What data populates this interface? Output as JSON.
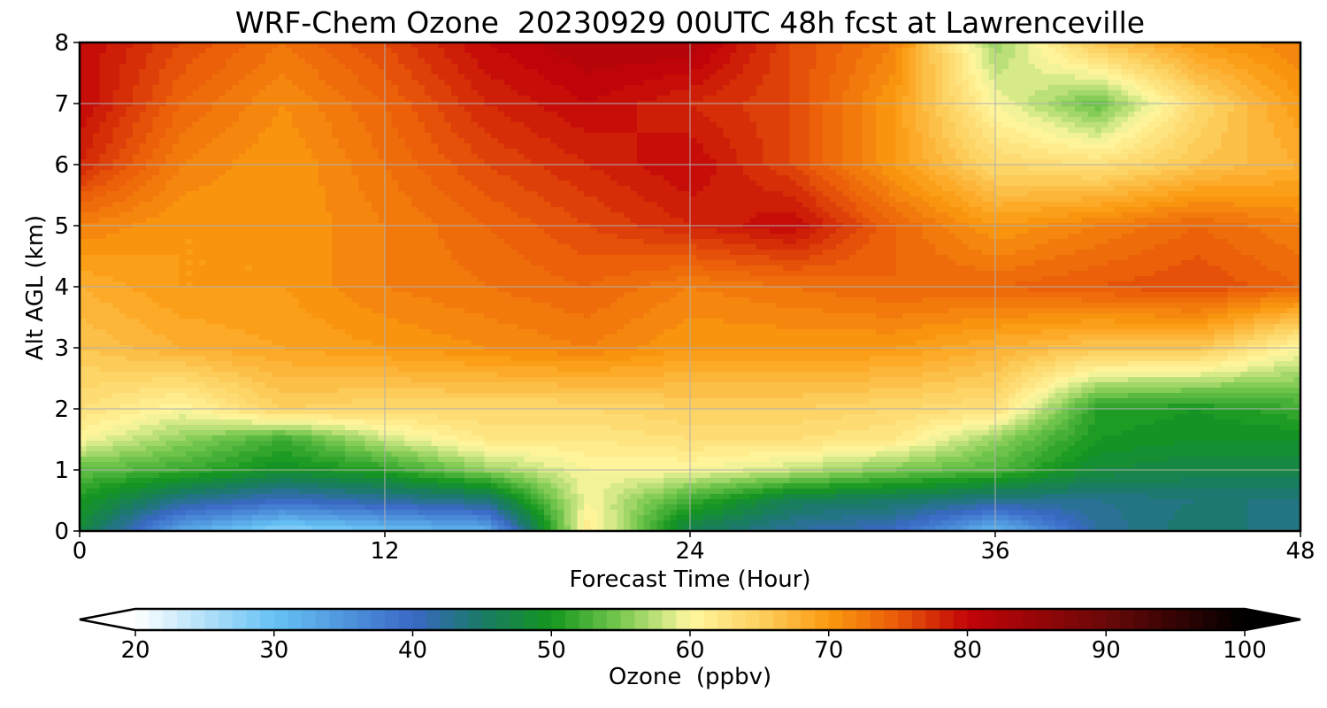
{
  "chart_data": {
    "type": "heatmap",
    "title": "WRF-Chem Ozone  20230929 00UTC 48h fcst at Lawrenceville",
    "xlabel": "Forecast Time (Hour)",
    "ylabel": "Alt AGL (km)",
    "xlim": [
      0,
      48
    ],
    "ylim": [
      0,
      8
    ],
    "xticks": [
      "0",
      "12",
      "24",
      "36",
      "48"
    ],
    "yticks": [
      "0",
      "1",
      "2",
      "3",
      "4",
      "5",
      "6",
      "7",
      "8"
    ],
    "grid": true,
    "colorbar": {
      "label": "Ozone  (ppbv)",
      "range": [
        20,
        100
      ],
      "extend": "both",
      "ticks": [
        "20",
        "30",
        "40",
        "50",
        "60",
        "70",
        "80",
        "90",
        "100"
      ],
      "colors": [
        {
          "value": 20,
          "color": "#ffffff"
        },
        {
          "value": 30,
          "color": "#66c2f4"
        },
        {
          "value": 40,
          "color": "#3a68c6"
        },
        {
          "value": 45,
          "color": "#1a7a66"
        },
        {
          "value": 50,
          "color": "#14961e"
        },
        {
          "value": 55,
          "color": "#78c850"
        },
        {
          "value": 60,
          "color": "#fff8a0"
        },
        {
          "value": 65,
          "color": "#fdd060"
        },
        {
          "value": 70,
          "color": "#fb9a10"
        },
        {
          "value": 75,
          "color": "#e95a08"
        },
        {
          "value": 80,
          "color": "#c20408"
        },
        {
          "value": 90,
          "color": "#6a0808"
        },
        {
          "value": 100,
          "color": "#000000"
        }
      ]
    },
    "x": [
      0,
      4,
      8,
      12,
      16,
      20,
      24,
      28,
      32,
      36,
      40,
      44,
      48
    ],
    "y": [
      0,
      0.5,
      1,
      1.5,
      2,
      3,
      4,
      5,
      6,
      7,
      8
    ],
    "z": [
      [
        48,
        33,
        27,
        30,
        32,
        62,
        46,
        42,
        40,
        31,
        42,
        45,
        43
      ],
      [
        50,
        43,
        40,
        42,
        44,
        60,
        52,
        46,
        45,
        43,
        43,
        44,
        44
      ],
      [
        54,
        52,
        49,
        51,
        56,
        60,
        60,
        58,
        55,
        53,
        48,
        47,
        47
      ],
      [
        60,
        56,
        52,
        58,
        62,
        62,
        63,
        63,
        62,
        56,
        50,
        49,
        49
      ],
      [
        63,
        60,
        65,
        64,
        64,
        64,
        65,
        65,
        64,
        63,
        51,
        50,
        52
      ],
      [
        66,
        68,
        69,
        70,
        71,
        72,
        70,
        70,
        70,
        68,
        66,
        66,
        60
      ],
      [
        68,
        70,
        70,
        72,
        73,
        74,
        72,
        73,
        74,
        74,
        75,
        76,
        74
      ],
      [
        72,
        70,
        70,
        72,
        74,
        76,
        78,
        80,
        74,
        70,
        72,
        74,
        72
      ],
      [
        78,
        72,
        70,
        73,
        76,
        78,
        80,
        76,
        70,
        64,
        63,
        66,
        68
      ],
      [
        80,
        74,
        71,
        74,
        78,
        80,
        78,
        76,
        70,
        60,
        54,
        64,
        70
      ],
      [
        80,
        76,
        73,
        76,
        80,
        82,
        82,
        76,
        72,
        56,
        66,
        70,
        72
      ]
    ]
  }
}
